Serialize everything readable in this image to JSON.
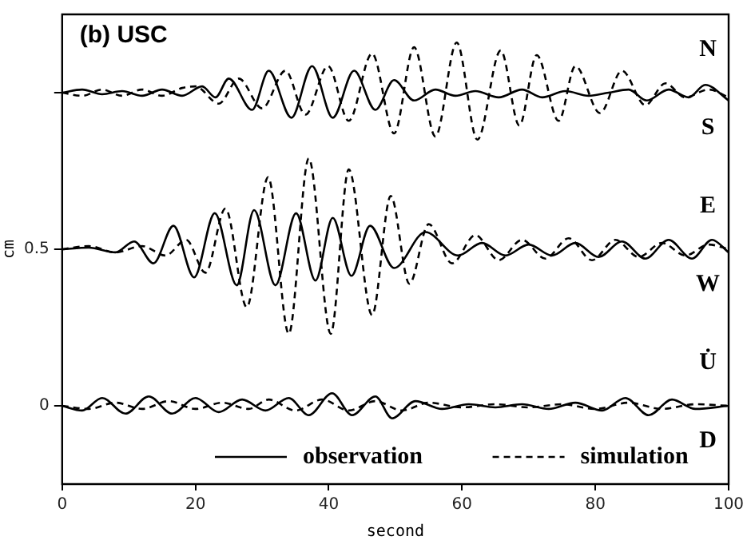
{
  "chart_data": {
    "type": "line",
    "title": "(b) USC",
    "xlabel": "second",
    "ylabel": "cm",
    "xlim": [
      0,
      100
    ],
    "xticks": [
      0,
      20,
      40,
      60,
      80,
      100
    ],
    "ylim": [
      -0.25,
      1.25
    ],
    "yticks": [
      0,
      0.5,
      {
        "value": 1,
        "label": null
      }
    ],
    "grid": false,
    "legend": "bottom",
    "marker": "none",
    "annotations": [
      "N",
      "S",
      "E",
      "W",
      "U̇",
      "D"
    ],
    "series": [
      {
        "name": "observation",
        "color": "#000000",
        "line_style": "solid",
        "x": [
          0,
          3,
          6,
          9,
          12,
          15,
          18,
          21,
          23,
          25,
          28.5,
          31,
          34.4,
          37.5,
          40.6,
          43.8,
          47,
          49.8,
          52.8,
          56,
          59,
          62,
          65.5,
          69,
          72,
          75.5,
          79,
          82,
          85,
          87.7,
          91,
          94,
          96.5,
          100
        ],
        "values": [
          1.0,
          1.01,
          0.995,
          1.005,
          0.99,
          1.01,
          0.99,
          1.02,
          0.985,
          1.045,
          0.945,
          1.07,
          0.92,
          1.085,
          0.92,
          1.07,
          0.945,
          1.04,
          0.975,
          1.01,
          0.99,
          1.005,
          0.985,
          1.01,
          0.985,
          1.005,
          0.99,
          1.0,
          1.01,
          0.975,
          1.01,
          0.985,
          1.025,
          0.975
        ]
      },
      {
        "name": "simulation",
        "color": "#000000",
        "line_style": "dashed",
        "x": [
          0,
          3,
          6,
          9,
          12,
          15,
          18,
          20,
          23.5,
          26.5,
          30,
          33.5,
          36.5,
          39.9,
          43,
          46.5,
          49.8,
          52.8,
          56,
          59.2,
          62.3,
          65.8,
          68.6,
          71.2,
          74.5,
          77,
          80.7,
          84,
          87.5,
          90.5,
          93.5,
          97,
          100
        ],
        "values": [
          1.0,
          0.99,
          1.01,
          0.99,
          1.01,
          0.99,
          1.015,
          1.02,
          0.965,
          1.045,
          0.95,
          1.07,
          0.93,
          1.085,
          0.91,
          1.125,
          0.87,
          1.145,
          0.86,
          1.16,
          0.85,
          1.135,
          0.895,
          1.12,
          0.91,
          1.085,
          0.935,
          1.07,
          0.96,
          1.03,
          0.985,
          1.01,
          0.985
        ]
      },
      {
        "color": "#000000",
        "line_style": "solid",
        "x": [
          0,
          4,
          8,
          10.8,
          13.7,
          16.7,
          19.8,
          22.9,
          26.2,
          28.8,
          32,
          35.1,
          38,
          40.6,
          43.4,
          46.2,
          49.8,
          54.5,
          59.4,
          63,
          66.5,
          70,
          73.5,
          77,
          80.5,
          84,
          87.5,
          91,
          94.5,
          97.5,
          100
        ],
        "values": [
          0.5,
          0.505,
          0.49,
          0.525,
          0.455,
          0.575,
          0.41,
          0.615,
          0.385,
          0.625,
          0.385,
          0.615,
          0.4,
          0.6,
          0.415,
          0.575,
          0.44,
          0.555,
          0.48,
          0.52,
          0.48,
          0.515,
          0.48,
          0.52,
          0.475,
          0.525,
          0.47,
          0.53,
          0.47,
          0.53,
          0.49
        ]
      },
      {
        "color": "#000000",
        "line_style": "dashed",
        "x": [
          0,
          4,
          8,
          12,
          15.5,
          18.6,
          21.5,
          24.5,
          27.7,
          30.9,
          34,
          37,
          40.3,
          43,
          46.5,
          49.3,
          52.1,
          55,
          58.5,
          62,
          65.5,
          69,
          72.5,
          76,
          79.5,
          83,
          86.5,
          90,
          93.5,
          97,
          100
        ],
        "values": [
          0.5,
          0.51,
          0.49,
          0.51,
          0.48,
          0.53,
          0.425,
          0.63,
          0.315,
          0.73,
          0.23,
          0.79,
          0.23,
          0.755,
          0.29,
          0.67,
          0.39,
          0.58,
          0.455,
          0.545,
          0.465,
          0.53,
          0.47,
          0.535,
          0.465,
          0.53,
          0.475,
          0.52,
          0.48,
          0.515,
          0.5
        ]
      },
      {
        "color": "#000000",
        "line_style": "solid",
        "x": [
          0,
          3,
          6,
          9.5,
          13,
          16.5,
          20,
          23.5,
          27,
          30.5,
          34,
          37,
          40.5,
          43.5,
          47,
          49.5,
          53,
          57,
          61,
          65,
          69,
          73,
          77,
          81,
          84.5,
          88,
          91.5,
          95,
          100
        ],
        "values": [
          0,
          -0.015,
          0.025,
          -0.025,
          0.03,
          -0.025,
          0.025,
          -0.02,
          0.02,
          -0.015,
          0.025,
          -0.03,
          0.04,
          -0.03,
          0.03,
          -0.04,
          0.015,
          -0.01,
          0.005,
          -0.005,
          0.005,
          -0.01,
          0.01,
          -0.015,
          0.025,
          -0.03,
          0.02,
          -0.01,
          0
        ]
      },
      {
        "color": "#000000",
        "line_style": "dashed",
        "x": [
          0,
          4,
          8,
          12,
          16,
          20,
          24,
          28,
          31,
          35,
          39,
          43,
          47,
          51,
          55,
          60,
          65,
          70,
          75,
          80,
          85,
          90,
          95,
          100
        ],
        "values": [
          0,
          -0.01,
          0.01,
          -0.01,
          0.015,
          -0.01,
          0.01,
          -0.01,
          0.02,
          -0.015,
          0.02,
          -0.015,
          0.015,
          -0.015,
          0.01,
          -0.005,
          0.005,
          -0.005,
          0.005,
          -0.01,
          0.01,
          -0.01,
          0.005,
          0
        ]
      }
    ]
  }
}
